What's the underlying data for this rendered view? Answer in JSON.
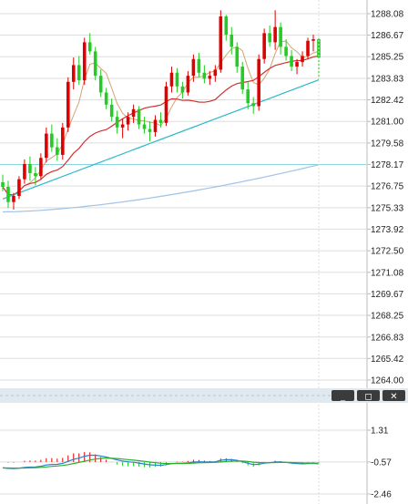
{
  "colors": {
    "up": "#e00000",
    "down": "#22cc22",
    "ma_fast": "#d4a373",
    "ma_mid": "#d23030",
    "ma_slow": "#29b9c9",
    "ma_long": "#9fc3e8",
    "macd_dif": "#2a7fd4",
    "macd_dea": "#2ab02a",
    "grid": "#dddddd",
    "axis": "#bbbbbb",
    "divider": "#8ad6de",
    "titlebar": "#dfe9ef"
  },
  "window_controls": [
    {
      "name": "minimize-icon",
      "glyph": "_"
    },
    {
      "name": "restore-icon",
      "glyph": "◻"
    },
    {
      "name": "close-icon",
      "glyph": "✕"
    }
  ],
  "chart_data": [
    {
      "type": "candlestick",
      "title": "",
      "ylim": [
        1264.0,
        1288.08
      ],
      "y_ticks": [
        "1288.08",
        "1286.67",
        "1285.25",
        "1283.83",
        "1282.42",
        "1281.00",
        "1279.58",
        "1278.17",
        "1276.75",
        "1275.33",
        "1273.92",
        "1272.50",
        "1271.08",
        "1269.67",
        "1268.25",
        "1266.83",
        "1265.42",
        "1264.00"
      ],
      "grid": true,
      "candles": [
        [
          1277.0,
          1277.5,
          1276.4,
          1276.7
        ],
        [
          1276.7,
          1277.1,
          1275.3,
          1275.7
        ],
        [
          1275.7,
          1276.3,
          1275.2,
          1276.1
        ],
        [
          1276.1,
          1277.4,
          1275.9,
          1277.2
        ],
        [
          1277.2,
          1278.5,
          1276.9,
          1278.2
        ],
        [
          1278.2,
          1278.7,
          1277.1,
          1277.6
        ],
        [
          1277.6,
          1278.0,
          1276.8,
          1277.4
        ],
        [
          1277.4,
          1278.9,
          1277.2,
          1278.6
        ],
        [
          1278.6,
          1280.6,
          1278.3,
          1280.2
        ],
        [
          1280.2,
          1280.8,
          1279.0,
          1279.3
        ],
        [
          1279.3,
          1279.9,
          1278.4,
          1278.8
        ],
        [
          1278.8,
          1280.9,
          1278.5,
          1280.6
        ],
        [
          1280.6,
          1283.9,
          1280.3,
          1283.6
        ],
        [
          1283.6,
          1285.2,
          1283.1,
          1284.7
        ],
        [
          1284.7,
          1285.3,
          1283.4,
          1283.7
        ],
        [
          1283.7,
          1286.5,
          1283.4,
          1286.2
        ],
        [
          1286.2,
          1286.8,
          1285.4,
          1285.6
        ],
        [
          1285.6,
          1285.9,
          1283.7,
          1284.0
        ],
        [
          1284.0,
          1284.4,
          1282.6,
          1282.9
        ],
        [
          1282.9,
          1283.2,
          1281.8,
          1282.1
        ],
        [
          1282.1,
          1282.5,
          1281.0,
          1281.3
        ],
        [
          1281.3,
          1281.7,
          1280.2,
          1280.6
        ],
        [
          1280.6,
          1281.2,
          1279.9,
          1280.8
        ],
        [
          1280.8,
          1281.6,
          1280.4,
          1281.3
        ],
        [
          1281.3,
          1282.1,
          1280.9,
          1281.8
        ],
        [
          1281.8,
          1282.0,
          1280.5,
          1280.8
        ],
        [
          1280.8,
          1281.3,
          1280.2,
          1280.5
        ],
        [
          1280.5,
          1281.0,
          1279.7,
          1280.3
        ],
        [
          1280.3,
          1281.4,
          1280.0,
          1281.1
        ],
        [
          1281.1,
          1281.6,
          1280.6,
          1280.9
        ],
        [
          1280.9,
          1283.6,
          1280.7,
          1283.3
        ],
        [
          1283.3,
          1284.6,
          1282.9,
          1284.2
        ],
        [
          1284.2,
          1284.5,
          1282.9,
          1283.3
        ],
        [
          1283.3,
          1283.6,
          1282.5,
          1282.9
        ],
        [
          1282.9,
          1284.3,
          1282.7,
          1284.0
        ],
        [
          1284.0,
          1285.4,
          1283.6,
          1285.1
        ],
        [
          1285.1,
          1285.5,
          1283.9,
          1284.2
        ],
        [
          1284.2,
          1284.7,
          1283.5,
          1283.8
        ],
        [
          1283.8,
          1284.3,
          1283.4,
          1284.0
        ],
        [
          1284.0,
          1284.7,
          1283.6,
          1284.4
        ],
        [
          1284.4,
          1288.3,
          1284.2,
          1287.9
        ],
        [
          1287.9,
          1288.0,
          1286.3,
          1286.7
        ],
        [
          1286.7,
          1287.2,
          1285.4,
          1285.9
        ],
        [
          1285.9,
          1286.2,
          1284.2,
          1284.6
        ],
        [
          1284.6,
          1284.9,
          1282.8,
          1283.1
        ],
        [
          1283.1,
          1283.6,
          1281.8,
          1282.2
        ],
        [
          1282.2,
          1282.6,
          1281.5,
          1282.0
        ],
        [
          1282.0,
          1285.4,
          1281.7,
          1285.1
        ],
        [
          1285.1,
          1287.1,
          1284.8,
          1286.8
        ],
        [
          1286.8,
          1287.3,
          1285.9,
          1286.2
        ],
        [
          1286.2,
          1288.3,
          1285.7,
          1287.2
        ],
        [
          1287.2,
          1287.5,
          1285.4,
          1285.9
        ],
        [
          1285.9,
          1286.4,
          1285.0,
          1285.3
        ],
        [
          1285.3,
          1285.7,
          1284.3,
          1284.6
        ],
        [
          1284.6,
          1285.1,
          1284.1,
          1284.9
        ],
        [
          1284.9,
          1285.6,
          1284.6,
          1285.3
        ],
        [
          1285.3,
          1286.5,
          1285.1,
          1286.3
        ],
        [
          1286.3,
          1286.7,
          1285.6,
          1286.4
        ],
        [
          1286.4,
          1286.6,
          1283.8,
          1285.2
        ]
      ]
    },
    {
      "type": "macd",
      "title": "",
      "ylim": [
        -2.46,
        1.31
      ],
      "y_ticks": [
        "1.31",
        "-0.57",
        "-2.46"
      ],
      "grid": true
    }
  ]
}
